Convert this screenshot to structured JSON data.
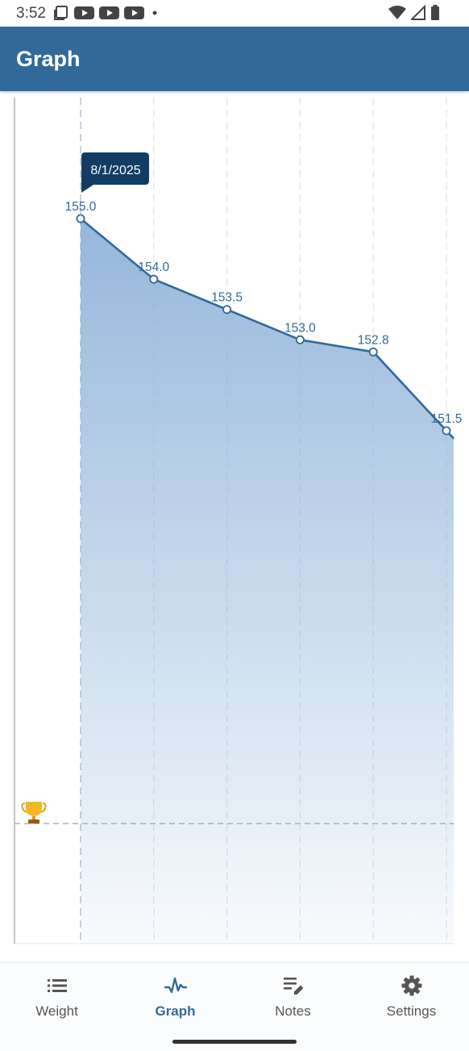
{
  "status_bar": {
    "time": "3:52",
    "left_icons": [
      "screenshot-icon",
      "youtube-icon",
      "youtube-icon",
      "youtube-icon",
      "dot-icon"
    ],
    "right_icons": [
      "wifi-icon",
      "signal-icon",
      "battery-icon"
    ]
  },
  "app_bar": {
    "title": "Graph",
    "color": "#32699b"
  },
  "chart_data": {
    "type": "area",
    "x": [
      "8/1/2025",
      "",
      "",
      "",
      "",
      ""
    ],
    "values": [
      155.0,
      154.0,
      153.5,
      153.0,
      152.8,
      151.5
    ],
    "value_labels": [
      "155.0",
      "154.0",
      "153.5",
      "153.0",
      "152.8",
      "151.5"
    ],
    "tooltip": "8/1/2025",
    "selected_index": 0,
    "goal_icon": "trophy-icon",
    "line_color": "#32699b",
    "fill_color": "#8fb3d9",
    "grid": true
  },
  "bottom_nav": {
    "items": [
      {
        "label": "Weight",
        "icon": "list-icon",
        "active": false
      },
      {
        "label": "Graph",
        "icon": "graph-icon",
        "active": true
      },
      {
        "label": "Notes",
        "icon": "notes-edit-icon",
        "active": false
      },
      {
        "label": "Settings",
        "icon": "gear-icon",
        "active": false
      }
    ]
  }
}
